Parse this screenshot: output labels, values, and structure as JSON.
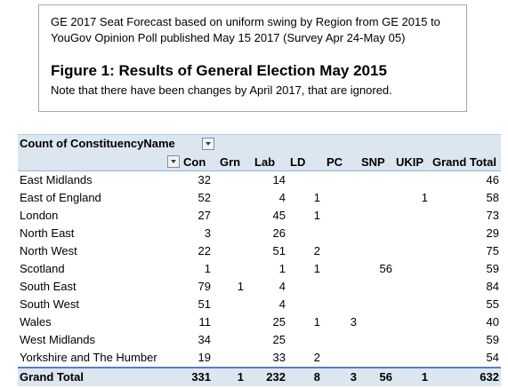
{
  "note": {
    "line1": "GE 2017  Seat Forecast based on uniform swing by Region from GE 2015  to",
    "line2": "YouGov Opinion Poll published May 15  2017  (Survey Apr 24-May 05)",
    "figure_title": "Figure 1: Results of General Election May 2015",
    "figure_subtitle": "Note that there have been changes by April 2017, that are ignored."
  },
  "pivot": {
    "title": "Count of ConstituencyName",
    "columns": [
      "Con",
      "Grn",
      "Lab",
      "LD",
      "PC",
      "SNP",
      "UKIP",
      "Grand Total"
    ],
    "rows": [
      {
        "region": "East Midlands",
        "values": [
          "32",
          "",
          "14",
          "",
          "",
          "",
          "",
          "46"
        ]
      },
      {
        "region": "East of England",
        "values": [
          "52",
          "",
          "4",
          "1",
          "",
          "",
          "1",
          "58"
        ]
      },
      {
        "region": "London",
        "values": [
          "27",
          "",
          "45",
          "1",
          "",
          "",
          "",
          "73"
        ]
      },
      {
        "region": "North East",
        "values": [
          "3",
          "",
          "26",
          "",
          "",
          "",
          "",
          "29"
        ]
      },
      {
        "region": "North West",
        "values": [
          "22",
          "",
          "51",
          "2",
          "",
          "",
          "",
          "75"
        ]
      },
      {
        "region": "Scotland",
        "values": [
          "1",
          "",
          "1",
          "1",
          "",
          "56",
          "",
          "59"
        ]
      },
      {
        "region": "South East",
        "values": [
          "79",
          "1",
          "4",
          "",
          "",
          "",
          "",
          "84"
        ]
      },
      {
        "region": "South West",
        "values": [
          "51",
          "",
          "4",
          "",
          "",
          "",
          "",
          "55"
        ]
      },
      {
        "region": "Wales",
        "values": [
          "11",
          "",
          "25",
          "1",
          "3",
          "",
          "",
          "40"
        ]
      },
      {
        "region": "West Midlands",
        "values": [
          "34",
          "",
          "25",
          "",
          "",
          "",
          "",
          "59"
        ]
      },
      {
        "region": "Yorkshire and The Humber",
        "values": [
          "19",
          "",
          "33",
          "2",
          "",
          "",
          "",
          "54"
        ]
      }
    ],
    "total": {
      "label": "Grand Total",
      "values": [
        "331",
        "1",
        "232",
        "8",
        "3",
        "56",
        "1",
        "632"
      ]
    }
  },
  "colors": {
    "header_fill": "#dce6f1",
    "total_border": "#4f81bd"
  }
}
